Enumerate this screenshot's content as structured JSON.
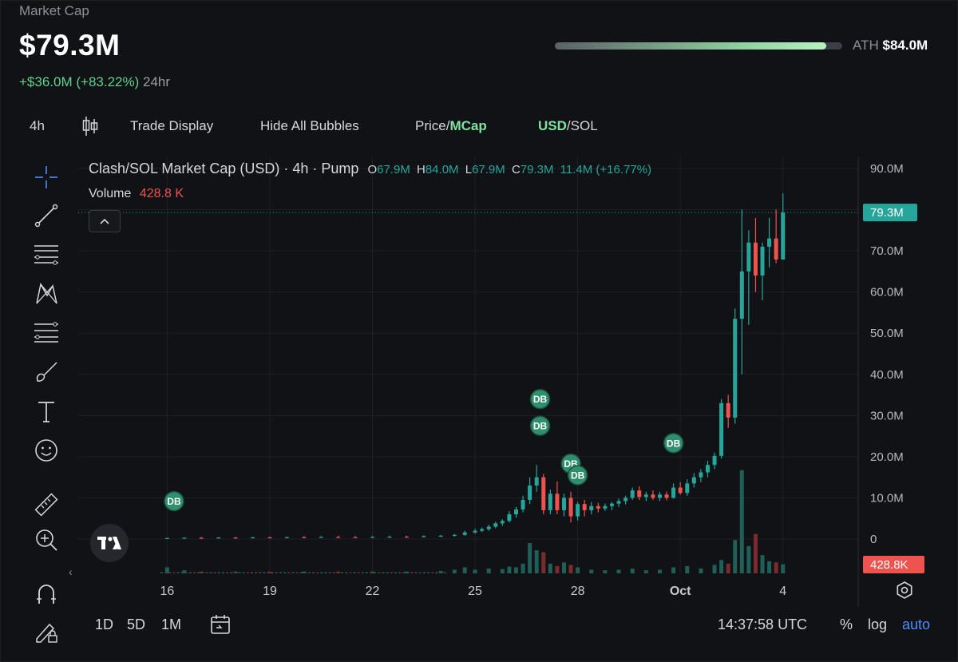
{
  "header": {
    "label": "Market Cap",
    "value": "$79.3M",
    "change": "+$36.0M (+83.22%)",
    "period": "24hr",
    "ath_label": "ATH",
    "ath_value": "$84.0M",
    "ath_progress": 0.944
  },
  "toolbar": {
    "interval": "4h",
    "trade_display": "Trade Display",
    "hide_bubbles": "Hide All Bubbles",
    "price_label": "Price/",
    "mcap_label": "MCap",
    "usd_label": "USD",
    "sol_label": "/SOL"
  },
  "legend": {
    "title": "Clash/SOL Market Cap (USD) · 4h · Pump",
    "o_label": "O",
    "o_value": "67.9M",
    "h_label": "H",
    "h_value": "84.0M",
    "l_label": "L",
    "l_value": "67.9M",
    "c_label": "C",
    "c_value": "79.3M",
    "change": "11.4M (+16.77%)",
    "volume_label": "Volume",
    "volume_value": "428.8 K"
  },
  "bottom": {
    "r1d": "1D",
    "r5d": "5D",
    "r1m": "1M",
    "time": "14:37:58 UTC",
    "percent": "%",
    "log": "log",
    "auto": "auto"
  },
  "colors": {
    "up": "#26a69a",
    "down": "#ef5350",
    "accent_green": "#5fd38a",
    "blue": "#4b8dff"
  },
  "chart_data": {
    "type": "candlestick",
    "title": "Clash/SOL Market Cap (USD) · 4h · Pump",
    "y_unit": "M",
    "ylim": [
      0,
      90
    ],
    "y_ticks": [
      "90.0M",
      "80.0M",
      "70.0M",
      "60.0M",
      "50.0M",
      "40.0M",
      "30.0M",
      "20.0M",
      "10.0M",
      "0"
    ],
    "y_tick_values": [
      90,
      80,
      70,
      60,
      50,
      40,
      30,
      20,
      10,
      0
    ],
    "x_ticks": [
      "16",
      "19",
      "22",
      "25",
      "28",
      "Oct",
      "4"
    ],
    "x_tick_days": [
      16,
      19,
      22,
      25,
      28,
      31,
      34
    ],
    "xlim_days": [
      13.4,
      36.2
    ],
    "last_price_label": "79.3M",
    "last_price": 79.3,
    "last_volume_label": "428.8K",
    "grid": true,
    "candles": [
      {
        "t": 16.0,
        "o": 0.2,
        "h": 0.3,
        "l": 0.1,
        "c": 0.25
      },
      {
        "t": 16.5,
        "o": 0.25,
        "h": 0.4,
        "l": 0.2,
        "c": 0.3
      },
      {
        "t": 17.0,
        "o": 0.3,
        "h": 0.5,
        "l": 0.2,
        "c": 0.28
      },
      {
        "t": 17.5,
        "o": 0.28,
        "h": 0.5,
        "l": 0.2,
        "c": 0.35
      },
      {
        "t": 18.0,
        "o": 0.35,
        "h": 0.5,
        "l": 0.25,
        "c": 0.3
      },
      {
        "t": 18.5,
        "o": 0.3,
        "h": 0.5,
        "l": 0.25,
        "c": 0.4
      },
      {
        "t": 19.0,
        "o": 0.4,
        "h": 0.6,
        "l": 0.3,
        "c": 0.35
      },
      {
        "t": 19.5,
        "o": 0.35,
        "h": 0.6,
        "l": 0.3,
        "c": 0.45
      },
      {
        "t": 20.0,
        "o": 0.45,
        "h": 0.7,
        "l": 0.35,
        "c": 0.4
      },
      {
        "t": 20.5,
        "o": 0.4,
        "h": 0.7,
        "l": 0.35,
        "c": 0.5
      },
      {
        "t": 21.0,
        "o": 0.5,
        "h": 0.8,
        "l": 0.4,
        "c": 0.45
      },
      {
        "t": 21.5,
        "o": 0.45,
        "h": 0.7,
        "l": 0.35,
        "c": 0.4
      },
      {
        "t": 22.0,
        "o": 0.4,
        "h": 0.7,
        "l": 0.3,
        "c": 0.5
      },
      {
        "t": 22.5,
        "o": 0.5,
        "h": 0.8,
        "l": 0.4,
        "c": 0.55
      },
      {
        "t": 23.0,
        "o": 0.55,
        "h": 0.8,
        "l": 0.4,
        "c": 0.5
      },
      {
        "t": 23.5,
        "o": 0.5,
        "h": 0.9,
        "l": 0.4,
        "c": 0.7
      },
      {
        "t": 24.0,
        "o": 0.7,
        "h": 1.0,
        "l": 0.5,
        "c": 0.8
      },
      {
        "t": 24.4,
        "o": 0.8,
        "h": 1.2,
        "l": 0.6,
        "c": 1.0
      },
      {
        "t": 24.7,
        "o": 1.0,
        "h": 2.0,
        "l": 0.8,
        "c": 1.6
      },
      {
        "t": 25.0,
        "o": 1.6,
        "h": 2.5,
        "l": 1.3,
        "c": 2.0
      },
      {
        "t": 25.2,
        "o": 2.0,
        "h": 2.8,
        "l": 1.7,
        "c": 2.4
      },
      {
        "t": 25.4,
        "o": 2.4,
        "h": 3.5,
        "l": 2.0,
        "c": 3.0
      },
      {
        "t": 25.6,
        "o": 3.0,
        "h": 4.2,
        "l": 2.6,
        "c": 3.8
      },
      {
        "t": 25.8,
        "o": 3.8,
        "h": 4.8,
        "l": 3.2,
        "c": 4.4
      },
      {
        "t": 26.0,
        "o": 4.4,
        "h": 6.8,
        "l": 4.0,
        "c": 6.0
      },
      {
        "t": 26.2,
        "o": 6.0,
        "h": 7.8,
        "l": 5.2,
        "c": 7.2
      },
      {
        "t": 26.4,
        "o": 7.2,
        "h": 10.5,
        "l": 6.5,
        "c": 9.5
      },
      {
        "t": 26.6,
        "o": 9.5,
        "h": 15.0,
        "l": 8.5,
        "c": 13.0
      },
      {
        "t": 26.8,
        "o": 13.0,
        "h": 18.0,
        "l": 11.5,
        "c": 15.0
      },
      {
        "t": 27.0,
        "o": 15.0,
        "h": 15.8,
        "l": 6.0,
        "c": 7.0
      },
      {
        "t": 27.2,
        "o": 7.0,
        "h": 12.0,
        "l": 6.0,
        "c": 11.0
      },
      {
        "t": 27.4,
        "o": 11.0,
        "h": 14.0,
        "l": 6.0,
        "c": 7.0
      },
      {
        "t": 27.6,
        "o": 7.0,
        "h": 11.0,
        "l": 5.5,
        "c": 10.0
      },
      {
        "t": 27.8,
        "o": 10.0,
        "h": 11.5,
        "l": 4.0,
        "c": 5.5
      },
      {
        "t": 28.0,
        "o": 5.5,
        "h": 9.0,
        "l": 4.5,
        "c": 8.5
      },
      {
        "t": 28.2,
        "o": 8.5,
        "h": 9.5,
        "l": 5.5,
        "c": 7.0
      },
      {
        "t": 28.4,
        "o": 7.0,
        "h": 9.0,
        "l": 6.0,
        "c": 8.0
      },
      {
        "t": 28.6,
        "o": 8.0,
        "h": 8.8,
        "l": 6.5,
        "c": 7.4
      },
      {
        "t": 28.8,
        "o": 7.4,
        "h": 8.6,
        "l": 6.8,
        "c": 8.0
      },
      {
        "t": 29.0,
        "o": 8.0,
        "h": 9.0,
        "l": 7.0,
        "c": 8.6
      },
      {
        "t": 29.2,
        "o": 8.6,
        "h": 9.8,
        "l": 7.8,
        "c": 9.2
      },
      {
        "t": 29.4,
        "o": 9.2,
        "h": 10.5,
        "l": 8.4,
        "c": 10.0
      },
      {
        "t": 29.6,
        "o": 10.0,
        "h": 12.5,
        "l": 9.5,
        "c": 11.8
      },
      {
        "t": 29.8,
        "o": 11.8,
        "h": 12.8,
        "l": 9.5,
        "c": 10.2
      },
      {
        "t": 30.0,
        "o": 10.2,
        "h": 11.5,
        "l": 9.2,
        "c": 10.8
      },
      {
        "t": 30.2,
        "o": 10.8,
        "h": 11.8,
        "l": 9.5,
        "c": 10.0
      },
      {
        "t": 30.4,
        "o": 10.0,
        "h": 11.5,
        "l": 9.2,
        "c": 10.8
      },
      {
        "t": 30.6,
        "o": 10.8,
        "h": 11.5,
        "l": 9.4,
        "c": 10.0
      },
      {
        "t": 30.8,
        "o": 10.0,
        "h": 13.5,
        "l": 9.8,
        "c": 12.5
      },
      {
        "t": 31.0,
        "o": 12.5,
        "h": 13.8,
        "l": 10.8,
        "c": 11.2
      },
      {
        "t": 31.2,
        "o": 11.2,
        "h": 14.5,
        "l": 10.5,
        "c": 13.5
      },
      {
        "t": 31.4,
        "o": 13.5,
        "h": 16.0,
        "l": 12.5,
        "c": 15.0
      },
      {
        "t": 31.6,
        "o": 15.0,
        "h": 17.0,
        "l": 13.8,
        "c": 16.2
      },
      {
        "t": 31.8,
        "o": 16.2,
        "h": 19.0,
        "l": 15.0,
        "c": 18.0
      },
      {
        "t": 32.0,
        "o": 18.0,
        "h": 21.0,
        "l": 17.0,
        "c": 20.2
      },
      {
        "t": 32.2,
        "o": 20.2,
        "h": 34.0,
        "l": 19.5,
        "c": 33.0
      },
      {
        "t": 32.4,
        "o": 33.0,
        "h": 35.0,
        "l": 27.0,
        "c": 29.5
      },
      {
        "t": 32.6,
        "o": 29.5,
        "h": 56.0,
        "l": 28.0,
        "c": 53.5
      },
      {
        "t": 32.8,
        "o": 53.5,
        "h": 80.0,
        "l": 40.0,
        "c": 65.0
      },
      {
        "t": 33.0,
        "o": 65.0,
        "h": 75.0,
        "l": 52.0,
        "c": 72.0
      },
      {
        "t": 33.2,
        "o": 72.0,
        "h": 78.0,
        "l": 60.0,
        "c": 64.0
      },
      {
        "t": 33.4,
        "o": 64.0,
        "h": 72.0,
        "l": 58.0,
        "c": 71.0
      },
      {
        "t": 33.6,
        "o": 71.0,
        "h": 78.0,
        "l": 66.0,
        "c": 73.0
      },
      {
        "t": 33.8,
        "o": 73.0,
        "h": 80.0,
        "l": 67.0,
        "c": 67.9
      },
      {
        "t": 34.0,
        "o": 67.9,
        "h": 84.0,
        "l": 67.9,
        "c": 79.3
      }
    ],
    "volumes": [
      {
        "t": 16.0,
        "v": 1.0,
        "up": true
      },
      {
        "t": 16.5,
        "v": 0.5,
        "up": true
      },
      {
        "t": 17.0,
        "v": 0.3,
        "up": false
      },
      {
        "t": 18.0,
        "v": 0.3,
        "up": true
      },
      {
        "t": 19.0,
        "v": 0.3,
        "up": false
      },
      {
        "t": 20.0,
        "v": 0.3,
        "up": true
      },
      {
        "t": 21.0,
        "v": 0.3,
        "up": false
      },
      {
        "t": 22.0,
        "v": 0.3,
        "up": true
      },
      {
        "t": 23.0,
        "v": 0.3,
        "up": true
      },
      {
        "t": 24.0,
        "v": 0.4,
        "up": true
      },
      {
        "t": 24.4,
        "v": 0.6,
        "up": true
      },
      {
        "t": 24.7,
        "v": 1.0,
        "up": true
      },
      {
        "t": 25.0,
        "v": 0.6,
        "up": true
      },
      {
        "t": 25.4,
        "v": 0.8,
        "up": true
      },
      {
        "t": 25.8,
        "v": 0.7,
        "up": true
      },
      {
        "t": 26.0,
        "v": 1.1,
        "up": true
      },
      {
        "t": 26.2,
        "v": 1.0,
        "up": true
      },
      {
        "t": 26.4,
        "v": 1.6,
        "up": true
      },
      {
        "t": 26.6,
        "v": 5.0,
        "up": true
      },
      {
        "t": 26.8,
        "v": 3.8,
        "up": true
      },
      {
        "t": 27.0,
        "v": 3.5,
        "up": false
      },
      {
        "t": 27.2,
        "v": 1.6,
        "up": true
      },
      {
        "t": 27.4,
        "v": 1.2,
        "up": false
      },
      {
        "t": 27.6,
        "v": 1.8,
        "up": true
      },
      {
        "t": 27.8,
        "v": 1.4,
        "up": false
      },
      {
        "t": 28.0,
        "v": 1.0,
        "up": true
      },
      {
        "t": 28.4,
        "v": 0.6,
        "up": true
      },
      {
        "t": 28.8,
        "v": 0.5,
        "up": true
      },
      {
        "t": 29.2,
        "v": 0.6,
        "up": true
      },
      {
        "t": 29.6,
        "v": 0.8,
        "up": true
      },
      {
        "t": 30.0,
        "v": 0.5,
        "up": true
      },
      {
        "t": 30.4,
        "v": 0.6,
        "up": true
      },
      {
        "t": 30.8,
        "v": 1.0,
        "up": true
      },
      {
        "t": 31.2,
        "v": 1.2,
        "up": true
      },
      {
        "t": 31.6,
        "v": 0.8,
        "up": true
      },
      {
        "t": 32.0,
        "v": 1.4,
        "up": true
      },
      {
        "t": 32.2,
        "v": 2.2,
        "up": true
      },
      {
        "t": 32.4,
        "v": 1.6,
        "up": false
      },
      {
        "t": 32.6,
        "v": 5.5,
        "up": true
      },
      {
        "t": 32.8,
        "v": 17.0,
        "up": true
      },
      {
        "t": 33.0,
        "v": 4.5,
        "up": true
      },
      {
        "t": 33.2,
        "v": 6.5,
        "up": false
      },
      {
        "t": 33.4,
        "v": 3.0,
        "up": true
      },
      {
        "t": 33.6,
        "v": 2.0,
        "up": true
      },
      {
        "t": 33.8,
        "v": 1.8,
        "up": false
      },
      {
        "t": 34.0,
        "v": 1.5,
        "up": true
      }
    ],
    "bubbles": [
      {
        "label": "DB",
        "t": 16.2,
        "y": 9.2
      },
      {
        "label": "DB",
        "t": 26.9,
        "y": 34.0
      },
      {
        "label": "DB",
        "t": 26.9,
        "y": 27.5
      },
      {
        "label": "DB",
        "t": 27.8,
        "y": 18.3
      },
      {
        "label": "DB",
        "t": 28.0,
        "y": 15.5
      },
      {
        "label": "DB",
        "t": 30.8,
        "y": 23.3
      }
    ]
  }
}
